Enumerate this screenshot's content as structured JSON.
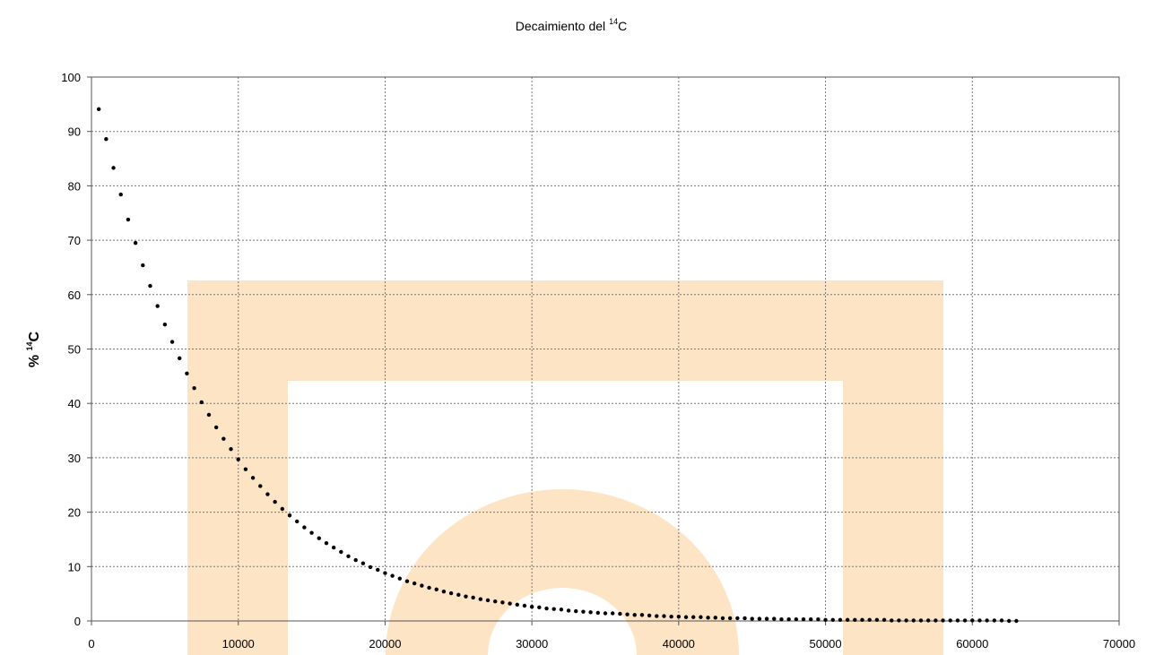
{
  "chart_data": {
    "type": "scatter",
    "title": {
      "prefix": "Decaimiento del ",
      "sup": "14",
      "suffix": "C"
    },
    "ylabel": {
      "prefix": "% ",
      "sup": "14",
      "suffix": "C"
    },
    "xlabel": "",
    "xlim": [
      0,
      70000
    ],
    "ylim": [
      0,
      100
    ],
    "xticks": [
      0,
      10000,
      20000,
      30000,
      40000,
      50000,
      60000,
      70000
    ],
    "yticks": [
      0,
      10,
      20,
      30,
      40,
      50,
      60,
      70,
      80,
      90,
      100
    ],
    "grid": true,
    "legend": "none",
    "colors": {
      "points": "#000000",
      "grid": "#777777",
      "axis": "#555555",
      "watermark": "#fde4c4"
    },
    "series": [
      {
        "x": [
          500,
          1000,
          1500,
          2000,
          2500,
          3000,
          3500,
          4000,
          4500,
          5000,
          5500,
          6000,
          6500,
          7000,
          7500,
          8000,
          8500,
          9000,
          9500,
          10000,
          10500,
          11000,
          11500,
          12000,
          12500,
          13000,
          13500,
          14000,
          14500,
          15000,
          15500,
          16000,
          16500,
          17000,
          17500,
          18000,
          18500,
          19000,
          19500,
          20000,
          20500,
          21000,
          21500,
          22000,
          22500,
          23000,
          23500,
          24000,
          24500,
          25000,
          25500,
          26000,
          26500,
          27000,
          27500,
          28000,
          28500,
          29000,
          29500,
          30000,
          30500,
          31000,
          31500,
          32000,
          32500,
          33000,
          33500,
          34000,
          34500,
          35000,
          35500,
          36000,
          36500,
          37000,
          37500,
          38000,
          38500,
          39000,
          39500,
          40000,
          40500,
          41000,
          41500,
          42000,
          42500,
          43000,
          43500,
          44000,
          44500,
          45000,
          45500,
          46000,
          46500,
          47000,
          47500,
          48000,
          48500,
          49000,
          49500,
          50000,
          50500,
          51000,
          51500,
          52000,
          52500,
          53000,
          53500,
          54000,
          54500,
          55000,
          55500,
          56000,
          56500,
          57000,
          57500,
          58000,
          58500,
          59000,
          59500,
          60000,
          60500,
          61000,
          61500,
          62000,
          62500,
          63000
        ],
        "y": [
          94.1,
          88.6,
          83.3,
          78.4,
          73.8,
          69.5,
          65.4,
          61.6,
          57.9,
          54.5,
          51.3,
          48.3,
          45.5,
          42.8,
          40.2,
          37.9,
          35.6,
          33.5,
          31.6,
          29.7,
          27.9,
          26.3,
          24.8,
          23.3,
          21.9,
          20.6,
          19.4,
          18.3,
          17.2,
          16.2,
          15.2,
          14.3,
          13.5,
          12.7,
          11.9,
          11.2,
          10.6,
          9.9,
          9.4,
          8.8,
          8.3,
          7.8,
          7.3,
          6.9,
          6.5,
          6.1,
          5.8,
          5.4,
          5.1,
          4.8,
          4.5,
          4.3,
          4.0,
          3.8,
          3.6,
          3.4,
          3.2,
          3.0,
          2.8,
          2.6,
          2.5,
          2.3,
          2.2,
          2.1,
          1.9,
          1.8,
          1.7,
          1.6,
          1.5,
          1.4,
          1.4,
          1.3,
          1.2,
          1.1,
          1.1,
          1.0,
          0.9,
          0.9,
          0.8,
          0.8,
          0.7,
          0.7,
          0.7,
          0.6,
          0.6,
          0.5,
          0.5,
          0.5,
          0.5,
          0.4,
          0.4,
          0.4,
          0.4,
          0.3,
          0.3,
          0.3,
          0.3,
          0.3,
          0.3,
          0.2,
          0.2,
          0.2,
          0.2,
          0.2,
          0.2,
          0.2,
          0.2,
          0.2,
          0.1,
          0.1,
          0.1,
          0.1,
          0.1,
          0.1,
          0.1,
          0.1,
          0.1,
          0.1,
          0.1,
          0.1,
          0.1,
          0.1,
          0.1,
          0.1,
          0.0,
          0.0
        ]
      }
    ]
  }
}
